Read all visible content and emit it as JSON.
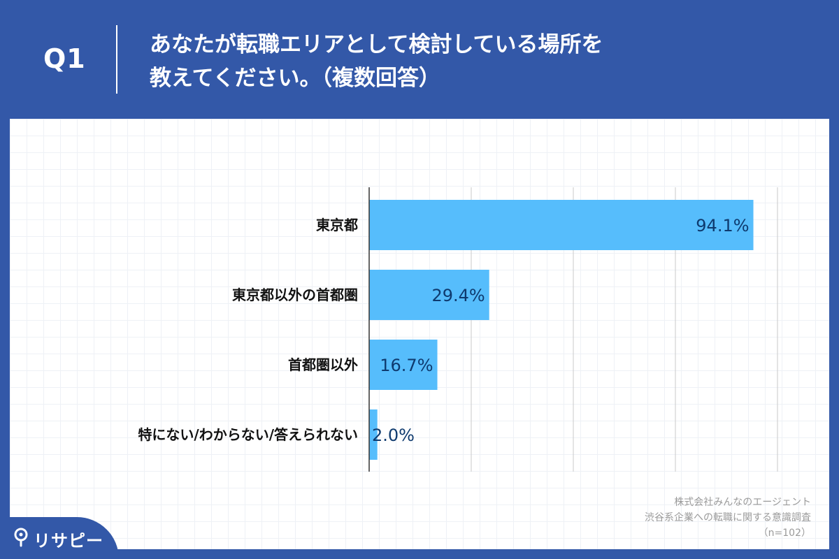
{
  "header": {
    "question_number": "Q1",
    "question_line1": "あなたが転職エリアとして検討している場所を",
    "question_line2": "教えてください。（複数回答）"
  },
  "chart_data": {
    "type": "bar",
    "orientation": "horizontal",
    "categories": [
      "東京都",
      "東京都以外の首都圏",
      "首都圏以外",
      "特にない/わからない/答えられない"
    ],
    "values": [
      94.1,
      29.4,
      16.7,
      2.0
    ],
    "value_labels": [
      "94.1%",
      "29.4%",
      "16.7%",
      "2.0%"
    ],
    "xlim": [
      0,
      100
    ],
    "grid": true,
    "bar_color": "#56bdfc"
  },
  "source": {
    "line1": "株式会社みんなのエージェント",
    "line2": "渋谷系企業への転職に関する意識調査",
    "line3": "（n=102）"
  },
  "logo": {
    "text": "リサピー",
    "icon": "map-pin-icon"
  },
  "colors": {
    "background": "#3358a8",
    "panel": "#ffffff",
    "bar": "#56bdfc",
    "value_text": "#0e3a6e"
  }
}
